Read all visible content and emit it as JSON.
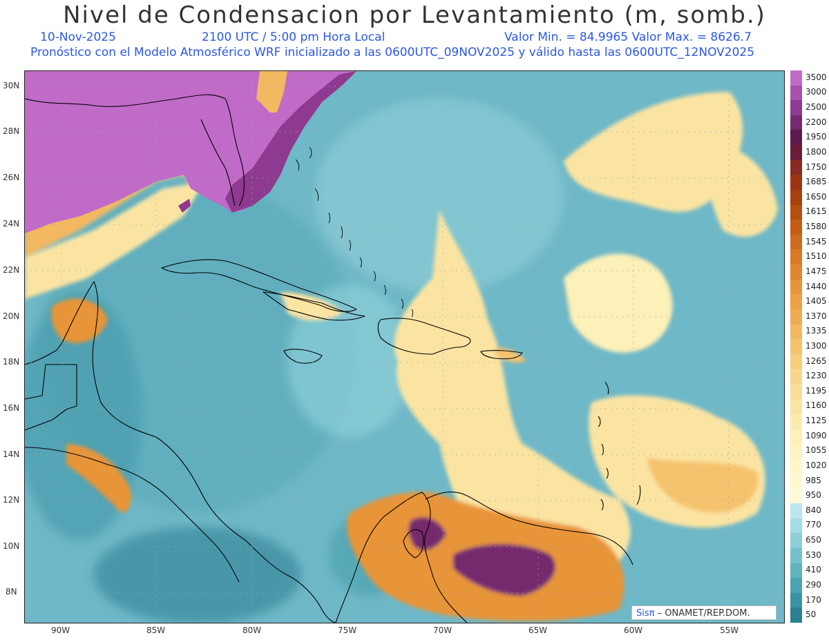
{
  "header": {
    "title": "Nivel de Condensacion por Levantamiento (m, somb.)",
    "date": "10-Nov-2025",
    "time": "2100 UTC / 5:00 pm Hora Local",
    "minmax": "Valor Min. = 84.9965  Valor Max. = 8626.7",
    "forecast_note": "Pronóstico con el Modelo Atmosférico WRF inicializado a las 0600UTC_09NOV2025 y válido hasta las  0600UTC_12NOV2025"
  },
  "axes": {
    "lat_labels": [
      "30N",
      "28N",
      "26N",
      "24N",
      "22N",
      "20N",
      "18N",
      "16N",
      "14N",
      "12N",
      "10N",
      "8N"
    ],
    "lon_labels": [
      "90W",
      "85W",
      "80W",
      "75W",
      "70W",
      "65W",
      "60W",
      "55W"
    ]
  },
  "colorbar": {
    "labels": [
      "3500",
      "3000",
      "2500",
      "2200",
      "1950",
      "1800",
      "1750",
      "1685",
      "1650",
      "1615",
      "1580",
      "1545",
      "1510",
      "1475",
      "1440",
      "1405",
      "1370",
      "1335",
      "1300",
      "1265",
      "1230",
      "1195",
      "1160",
      "1125",
      "1090",
      "1055",
      "1020",
      "985",
      "950",
      "840",
      "770",
      "650",
      "530",
      "410",
      "290",
      "170",
      "50"
    ],
    "colors": [
      "#c06bc8",
      "#a851ae",
      "#8e3a90",
      "#742a6e",
      "#5c1a4f",
      "#6a1c3a",
      "#8a2a22",
      "#9c3414",
      "#a8410e",
      "#b64e10",
      "#c45c16",
      "#d06a1e",
      "#da7826",
      "#e2862e",
      "#e89438",
      "#eda044",
      "#f0ac52",
      "#f3b860",
      "#f5c36e",
      "#f7cd7c",
      "#f9d68a",
      "#fadd96",
      "#fbe4a2",
      "#fcebae",
      "#fdf0b8",
      "#fdf3c0",
      "#fef6c8",
      "#fff8cf",
      "#fffad6",
      "#bde6ee",
      "#a4dce6",
      "#8ccfd9",
      "#74c1cc",
      "#5eb3bf",
      "#4ba3b1",
      "#3a93a2",
      "#2c8092"
    ],
    "brand": "Sisπ",
    "credit": "– ONAMET/REP.DOM."
  },
  "colors": {
    "title": "#333333",
    "subtitle": "#2b57e8",
    "ocean": "#6fb8c7"
  }
}
